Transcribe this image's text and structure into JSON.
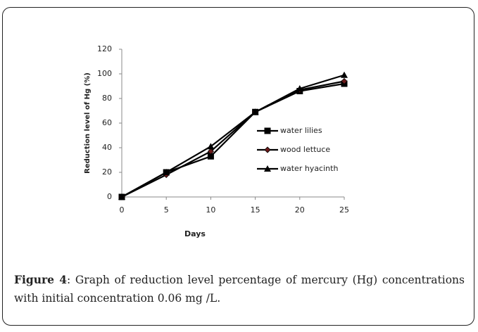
{
  "chart_data": {
    "type": "line",
    "x": [
      0,
      5,
      10,
      15,
      20,
      25
    ],
    "series": [
      {
        "name": "water lilies",
        "color": "#000000",
        "marker": "square",
        "values": [
          0,
          20,
          33,
          69,
          86,
          92
        ]
      },
      {
        "name": "wood lettuce",
        "color": "#000000",
        "marker": "diamond",
        "values": [
          0,
          18,
          37,
          69,
          87,
          94
        ]
      },
      {
        "name": "water hyacinth",
        "color": "#000000",
        "marker": "triangle",
        "values": [
          0,
          20,
          41,
          69,
          88,
          99
        ]
      }
    ],
    "xlabel": "Days",
    "ylabel": "Reduction level of Hg (%)",
    "xlim": [
      0,
      25
    ],
    "xticks": [
      0,
      5,
      10,
      15,
      20,
      25
    ],
    "ylim": [
      0,
      120
    ],
    "yticks": [
      0,
      20,
      40,
      60,
      80,
      100,
      120
    ],
    "legend": "right"
  },
  "caption": {
    "label": "Figure 4",
    "text": ": Graph of reduction level percentage of mercury (Hg) concentrations with initial concentration 0.06 mg /L."
  }
}
